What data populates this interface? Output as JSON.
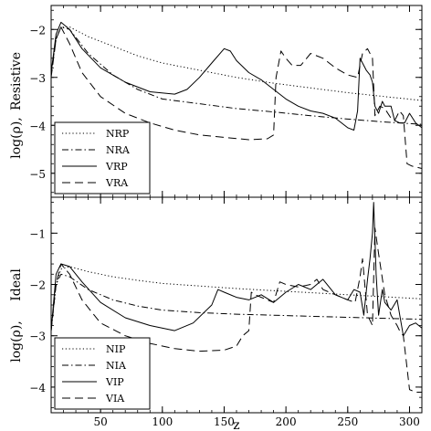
{
  "chart_data": [
    {
      "type": "line",
      "panel_label": "Resistive",
      "ylabel": "log(ρ),",
      "xlabel": "",
      "xlim": [
        10,
        310
      ],
      "ylim": [
        -5.5,
        -1.5
      ],
      "yticks": [
        -2,
        -3,
        -4,
        -5
      ],
      "xticks": [
        50,
        100,
        150,
        200,
        250,
        300
      ],
      "legend_position": "bottom-left",
      "series": [
        {
          "name": "NRP",
          "style": "dotted",
          "x": [
            10,
            14,
            18,
            25,
            40,
            60,
            80,
            100,
            130,
            160,
            190,
            220,
            250,
            280,
            310
          ],
          "y": [
            -2.9,
            -2.2,
            -1.95,
            -1.95,
            -2.15,
            -2.35,
            -2.55,
            -2.7,
            -2.85,
            -3.0,
            -3.12,
            -3.22,
            -3.32,
            -3.4,
            -3.48
          ]
        },
        {
          "name": "NRA",
          "style": "dashdot",
          "x": [
            10,
            14,
            18,
            25,
            40,
            60,
            80,
            100,
            130,
            160,
            190,
            220,
            250,
            280,
            310
          ],
          "y": [
            -2.9,
            -2.2,
            -1.95,
            -2.0,
            -2.5,
            -2.95,
            -3.25,
            -3.45,
            -3.55,
            -3.65,
            -3.72,
            -3.8,
            -3.87,
            -3.93,
            -3.98
          ]
        },
        {
          "name": "VRP",
          "style": "solid",
          "x": [
            10,
            14,
            18,
            25,
            35,
            50,
            70,
            90,
            110,
            120,
            130,
            140,
            150,
            155,
            160,
            170,
            180,
            190,
            200,
            210,
            220,
            230,
            240,
            250,
            255,
            258,
            260,
            262,
            265,
            268,
            270,
            272,
            275,
            278,
            280,
            285,
            288,
            292,
            296,
            300,
            305,
            310
          ],
          "y": [
            -2.9,
            -2.1,
            -1.85,
            -2.0,
            -2.4,
            -2.8,
            -3.1,
            -3.3,
            -3.35,
            -3.25,
            -3.0,
            -2.7,
            -2.4,
            -2.45,
            -2.65,
            -2.9,
            -3.05,
            -3.25,
            -3.45,
            -3.6,
            -3.7,
            -3.75,
            -3.85,
            -4.05,
            -4.1,
            -3.7,
            -2.6,
            -2.7,
            -2.85,
            -2.95,
            -3.1,
            -3.6,
            -3.75,
            -3.5,
            -3.6,
            -3.6,
            -3.9,
            -3.95,
            -3.95,
            -3.75,
            -3.95,
            -4.05
          ]
        },
        {
          "name": "VRA",
          "style": "dashed",
          "x": [
            10,
            14,
            18,
            25,
            35,
            50,
            70,
            90,
            110,
            130,
            150,
            170,
            185,
            190,
            192,
            196,
            200,
            205,
            212,
            220,
            230,
            240,
            250,
            258,
            262,
            266,
            270,
            272,
            276,
            280,
            285,
            288,
            292,
            295,
            298,
            302,
            310
          ],
          "y": [
            -3.0,
            -2.2,
            -1.95,
            -2.3,
            -2.9,
            -3.4,
            -3.75,
            -3.95,
            -4.1,
            -4.2,
            -4.25,
            -4.3,
            -4.28,
            -4.2,
            -3.0,
            -2.45,
            -2.6,
            -2.75,
            -2.75,
            -2.5,
            -2.6,
            -2.8,
            -2.95,
            -3.0,
            -2.5,
            -2.4,
            -2.6,
            -3.8,
            -3.6,
            -3.65,
            -3.85,
            -3.9,
            -3.7,
            -3.8,
            -4.8,
            -4.85,
            -4.9
          ]
        }
      ]
    },
    {
      "type": "line",
      "panel_label": "Ideal",
      "ylabel": "log(ρ),",
      "xlabel": "z",
      "xlim": [
        10,
        310
      ],
      "ylim": [
        -4.5,
        -0.3
      ],
      "yticks": [
        -1,
        -2,
        -3,
        -4
      ],
      "xticks": [
        50,
        100,
        150,
        200,
        250,
        300
      ],
      "legend_position": "bottom-left",
      "series": [
        {
          "name": "NIP",
          "style": "dotted",
          "x": [
            10,
            14,
            18,
            25,
            40,
            60,
            80,
            100,
            130,
            160,
            190,
            220,
            250,
            280,
            310
          ],
          "y": [
            -2.9,
            -2.0,
            -1.7,
            -1.65,
            -1.75,
            -1.85,
            -1.92,
            -1.98,
            -2.03,
            -2.08,
            -2.12,
            -2.16,
            -2.2,
            -2.24,
            -2.28
          ]
        },
        {
          "name": "NIA",
          "style": "dashdot",
          "x": [
            10,
            14,
            18,
            25,
            40,
            60,
            80,
            100,
            130,
            160,
            190,
            220,
            250,
            280,
            310
          ],
          "y": [
            -2.9,
            -2.0,
            -1.8,
            -1.85,
            -2.1,
            -2.3,
            -2.42,
            -2.5,
            -2.55,
            -2.58,
            -2.6,
            -2.62,
            -2.64,
            -2.66,
            -2.68
          ]
        },
        {
          "name": "VIP",
          "style": "solid",
          "x": [
            10,
            14,
            18,
            25,
            35,
            50,
            70,
            90,
            110,
            125,
            140,
            145,
            150,
            160,
            170,
            180,
            190,
            200,
            210,
            220,
            230,
            240,
            250,
            255,
            260,
            263,
            266,
            268,
            270,
            271,
            272,
            273,
            275,
            278,
            280,
            285,
            290,
            295,
            300,
            305,
            310
          ],
          "y": [
            -2.9,
            -1.8,
            -1.6,
            -1.65,
            -1.95,
            -2.35,
            -2.65,
            -2.8,
            -2.9,
            -2.75,
            -2.4,
            -2.1,
            -2.15,
            -2.25,
            -2.3,
            -2.2,
            -2.35,
            -2.15,
            -2.0,
            -2.1,
            -1.9,
            -2.2,
            -2.3,
            -2.1,
            -2.15,
            -2.6,
            -1.9,
            -1.5,
            -1.0,
            -0.4,
            -1.1,
            -1.8,
            -2.6,
            -2.1,
            -2.35,
            -2.5,
            -2.3,
            -3.0,
            -2.8,
            -2.75,
            -2.85
          ]
        },
        {
          "name": "VIA",
          "style": "dashed",
          "x": [
            10,
            14,
            18,
            25,
            35,
            50,
            70,
            90,
            110,
            130,
            150,
            160,
            165,
            170,
            172,
            175,
            185,
            190,
            195,
            200,
            210,
            220,
            225,
            230,
            240,
            250,
            256,
            260,
            262,
            266,
            270,
            272,
            275,
            280,
            285,
            290,
            292,
            295,
            300,
            305,
            310
          ],
          "y": [
            -2.9,
            -2.0,
            -1.6,
            -1.8,
            -2.3,
            -2.75,
            -3.0,
            -3.15,
            -3.25,
            -3.3,
            -3.28,
            -3.2,
            -3.0,
            -2.9,
            -2.15,
            -2.2,
            -2.3,
            -2.35,
            -1.95,
            -2.0,
            -2.05,
            -2.0,
            -1.9,
            -2.1,
            -2.2,
            -2.3,
            -2.35,
            -1.85,
            -1.5,
            -2.6,
            -2.8,
            -0.9,
            -1.4,
            -2.2,
            -2.6,
            -2.8,
            -2.9,
            -3.0,
            -4.05,
            -4.1,
            -4.1
          ]
        }
      ]
    }
  ]
}
